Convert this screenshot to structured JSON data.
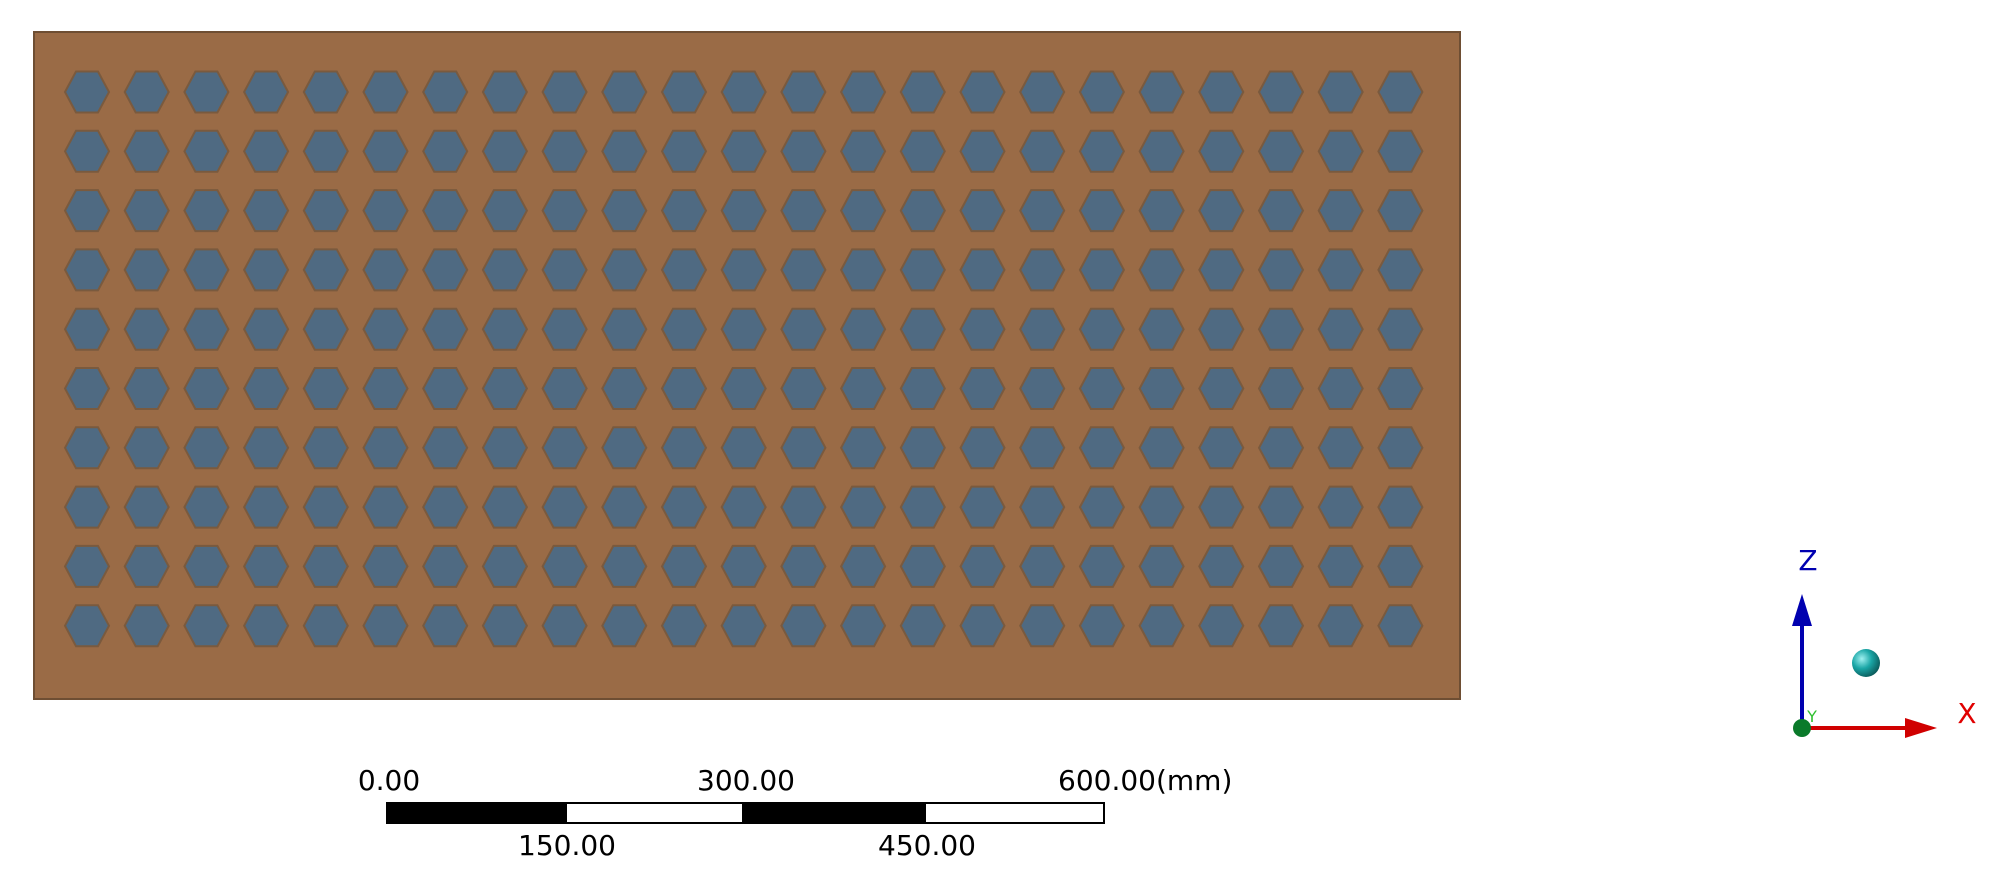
{
  "scale_bar": {
    "top_labels": [
      "0.00",
      "300.00",
      "600.00(mm)"
    ],
    "bottom_labels": [
      "150.00",
      "450.00"
    ]
  },
  "axes": {
    "z": "Z",
    "x": "X",
    "y": "Y"
  }
}
